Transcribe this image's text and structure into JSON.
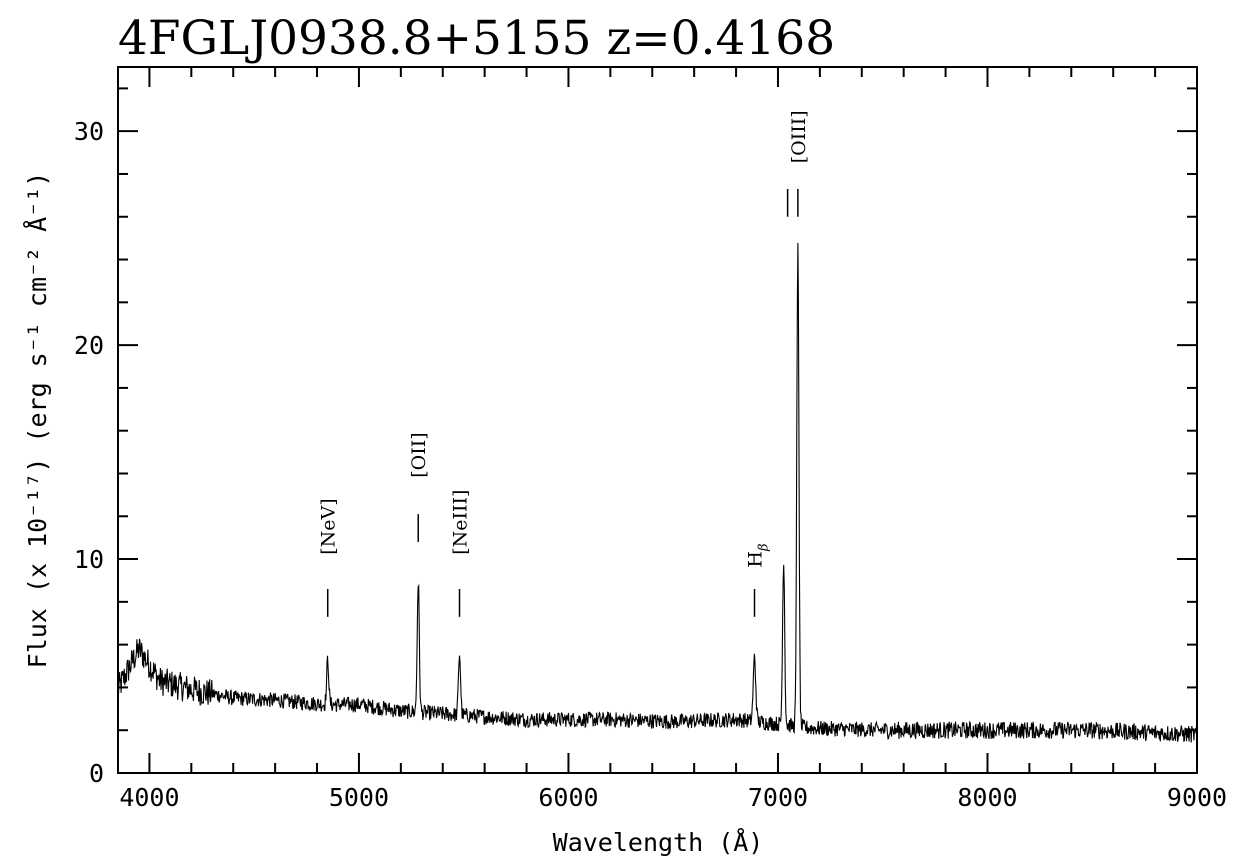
{
  "chart_data": {
    "type": "line",
    "title": "4FGLJ0938.8+5155 z=0.4168",
    "xlabel": "Wavelength (Å)",
    "ylabel": "Flux (x 10⁻¹⁷) (erg s⁻¹ cm⁻² Å⁻¹)",
    "xlim": [
      3850,
      9000
    ],
    "ylim": [
      0,
      33
    ],
    "x_ticks": [
      4000,
      5000,
      6000,
      7000,
      8000,
      9000
    ],
    "y_ticks": [
      0,
      10,
      20,
      30
    ],
    "x_tick_labels": [
      "4000",
      "5000",
      "6000",
      "7000",
      "8000",
      "9000"
    ],
    "y_tick_labels": [
      "0",
      "10",
      "20",
      "30"
    ],
    "grid": false,
    "line_color": "#000000",
    "continuum": [
      [
        3850,
        3.9
      ],
      [
        3950,
        5.8
      ],
      [
        4050,
        4.3
      ],
      [
        4200,
        3.9
      ],
      [
        4400,
        3.5
      ],
      [
        4600,
        3.4
      ],
      [
        4850,
        3.2
      ],
      [
        5000,
        3.2
      ],
      [
        5200,
        2.9
      ],
      [
        5500,
        2.7
      ],
      [
        5800,
        2.5
      ],
      [
        6000,
        2.5
      ],
      [
        6200,
        2.5
      ],
      [
        6500,
        2.4
      ],
      [
        6800,
        2.5
      ],
      [
        7000,
        2.3
      ],
      [
        7150,
        2.1
      ],
      [
        7500,
        2.0
      ],
      [
        8000,
        2.0
      ],
      [
        8500,
        2.0
      ],
      [
        9000,
        1.8
      ]
    ],
    "emission_lines": [
      {
        "label": "[NeV]",
        "wavelength": 4851,
        "peak": 5.3,
        "width": 5,
        "marker": [
          7.3,
          8.6
        ],
        "label_y": 10.2
      },
      {
        "label": "[OII]",
        "wavelength": 5283,
        "peak": 8.9,
        "width": 5,
        "marker": [
          10.8,
          12.1
        ],
        "label_y": 13.8
      },
      {
        "label": "[NeIII]",
        "wavelength": 5480,
        "peak": 5.6,
        "width": 5,
        "marker": [
          7.3,
          8.6
        ],
        "label_y": 10.2
      },
      {
        "label": "H",
        "label_sub": "β",
        "wavelength": 6888,
        "peak": 5.4,
        "width": 6,
        "marker": [
          7.3,
          8.6
        ],
        "label_y": 9.6
      },
      {
        "label": "[OIII]",
        "wavelength": 7027,
        "peak": 10.0,
        "width": 5,
        "marker": null,
        "label_y": null
      },
      {
        "label": "[OIII]",
        "wavelength": 7095,
        "peak": 25.0,
        "width": 5,
        "marker": [
          26.0,
          27.3
        ],
        "label_y": 28.5
      }
    ],
    "noise_amplitude": 0.45
  }
}
